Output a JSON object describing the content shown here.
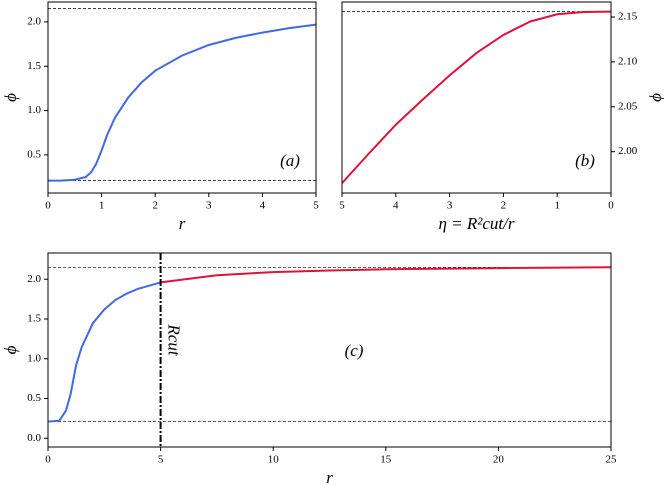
{
  "chart_data": [
    {
      "type": "line",
      "xlabel": "r",
      "ylabel": "ϕ",
      "annotation": "(a)",
      "xlim": [
        0,
        5
      ],
      "ylim": [
        0.07,
        2.225
      ],
      "xticks": [
        0,
        1,
        2,
        3,
        4,
        5
      ],
      "yticks": [
        0.5,
        {
          "value": 1.0,
          "label": "1.0"
        },
        1.5,
        {
          "value": 2.0,
          "label": "2.0"
        }
      ],
      "yaxis_side": "left",
      "hlines": [
        2.15,
        0.21
      ],
      "series": [
        {
          "color": "#4169e1",
          "x": [
            0,
            0.25,
            0.5,
            0.7,
            0.8,
            0.9,
            1.0,
            1.1,
            1.25,
            1.5,
            1.75,
            2,
            2.5,
            3,
            3.5,
            4,
            4.5,
            5
          ],
          "values": [
            0.21,
            0.21,
            0.22,
            0.25,
            0.3,
            0.4,
            0.55,
            0.72,
            0.92,
            1.15,
            1.32,
            1.45,
            1.62,
            1.74,
            1.82,
            1.88,
            1.93,
            1.97
          ]
        }
      ]
    },
    {
      "type": "line",
      "xlabel": "η = R²cut/r",
      "ylabel": "ϕ",
      "annotation": "(b)",
      "xlim": [
        5,
        0
      ],
      "ylim": [
        1.954,
        2.1667
      ],
      "xticks": [
        5,
        4,
        3,
        2,
        1,
        0
      ],
      "yticks": [
        {
          "value": 2.0,
          "label": "2.00"
        },
        {
          "value": 2.05,
          "label": "2.05"
        },
        {
          "value": 2.1,
          "label": "2.10"
        },
        {
          "value": 2.15,
          "label": "2.15"
        }
      ],
      "yaxis_side": "right",
      "hlines": [
        2.156
      ],
      "series": [
        {
          "color": "#dc143c",
          "x": [
            5,
            4.5,
            4,
            3.5,
            3,
            2.5,
            2,
            1.5,
            1,
            0.5,
            0
          ],
          "values": [
            1.965,
            1.998,
            2.03,
            2.058,
            2.085,
            2.11,
            2.13,
            2.145,
            2.153,
            2.1555,
            2.156
          ]
        }
      ]
    },
    {
      "type": "line",
      "xlabel": "r",
      "ylabel": "ϕ",
      "annotation": "(c)",
      "vline_label": "Rcut",
      "xlim": [
        0,
        25
      ],
      "ylim": [
        -0.11,
        2.33
      ],
      "xticks": [
        0,
        5,
        10,
        15,
        20,
        25
      ],
      "yticks": [
        {
          "value": 0.0,
          "label": "0.0"
        },
        0.5,
        {
          "value": 1.0,
          "label": "1.0"
        },
        1.5,
        {
          "value": 2.0,
          "label": "2.0"
        }
      ],
      "yaxis_side": "left",
      "hlines": [
        2.15,
        0.21
      ],
      "vline": 5,
      "series": [
        {
          "color": "#4169e1",
          "x": [
            0,
            0.5,
            0.8,
            1,
            1.25,
            1.5,
            2,
            2.5,
            3,
            3.5,
            4,
            5
          ],
          "values": [
            0.21,
            0.22,
            0.35,
            0.55,
            0.92,
            1.15,
            1.45,
            1.62,
            1.74,
            1.82,
            1.88,
            1.96
          ]
        },
        {
          "color": "#dc143c",
          "x": [
            5,
            7.5,
            10,
            12.5,
            15,
            20,
            25
          ],
          "values": [
            1.96,
            2.05,
            2.09,
            2.11,
            2.125,
            2.14,
            2.15
          ]
        }
      ]
    }
  ]
}
